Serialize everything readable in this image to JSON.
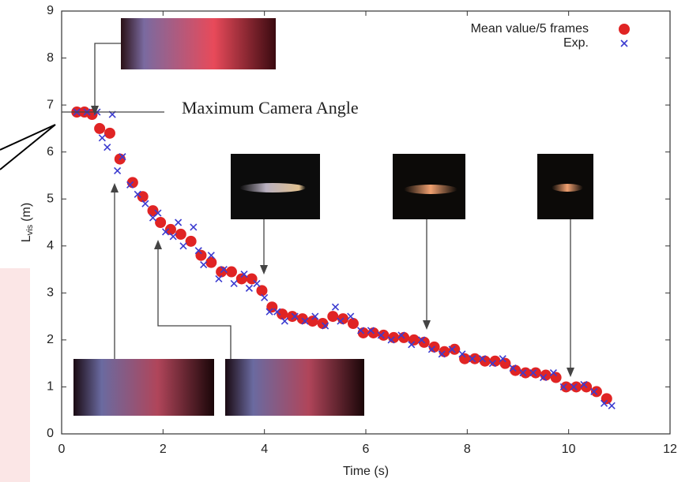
{
  "chart_data": {
    "type": "scatter",
    "x_label": "Time (s)",
    "y_label": "L",
    "y_label_subscript": "vis",
    "y_label_unit": "(m)",
    "annotation": "Maximum Camera Angle",
    "xlim": [
      0,
      12
    ],
    "ylim": [
      0,
      9
    ],
    "xticks": [
      0,
      2,
      4,
      6,
      8,
      10,
      12
    ],
    "yticks": [
      0,
      1,
      2,
      3,
      4,
      5,
      6,
      7,
      8,
      9
    ],
    "legend": "top-right",
    "series": [
      {
        "name": "Mean value/5 frames",
        "color": "#e02424",
        "marker": "circle",
        "x": [
          0.3,
          0.45,
          0.6,
          0.75,
          0.95,
          1.15,
          1.4,
          1.6,
          1.8,
          1.95,
          2.15,
          2.35,
          2.55,
          2.75,
          2.95,
          3.15,
          3.35,
          3.55,
          3.75,
          3.95,
          4.15,
          4.35,
          4.55,
          4.75,
          4.95,
          5.15,
          5.35,
          5.55,
          5.75,
          5.95,
          6.15,
          6.35,
          6.55,
          6.75,
          6.95,
          7.15,
          7.35,
          7.55,
          7.75,
          7.95,
          8.15,
          8.35,
          8.55,
          8.75,
          8.95,
          9.15,
          9.35,
          9.55,
          9.75,
          9.95,
          10.15,
          10.35,
          10.55,
          10.75
        ],
        "values": [
          6.85,
          6.85,
          6.8,
          6.5,
          6.4,
          5.85,
          5.35,
          5.05,
          4.75,
          4.5,
          4.35,
          4.25,
          4.1,
          3.8,
          3.65,
          3.45,
          3.45,
          3.3,
          3.3,
          3.05,
          2.7,
          2.55,
          2.5,
          2.45,
          2.4,
          2.35,
          2.5,
          2.45,
          2.35,
          2.15,
          2.15,
          2.1,
          2.05,
          2.05,
          2.0,
          1.95,
          1.85,
          1.75,
          1.8,
          1.6,
          1.6,
          1.55,
          1.55,
          1.5,
          1.35,
          1.3,
          1.3,
          1.25,
          1.2,
          1.0,
          1.0,
          1.0,
          0.9,
          0.75
        ]
      },
      {
        "name": "Exp.",
        "color": "#3b3bd0",
        "marker": "x",
        "x": [
          0.3,
          0.5,
          0.7,
          0.8,
          0.9,
          1.0,
          1.1,
          1.2,
          1.35,
          1.5,
          1.65,
          1.8,
          1.9,
          2.05,
          2.2,
          2.3,
          2.4,
          2.6,
          2.7,
          2.8,
          2.95,
          3.1,
          3.2,
          3.4,
          3.6,
          3.7,
          3.85,
          4.0,
          4.1,
          4.25,
          4.4,
          4.6,
          4.8,
          5.0,
          5.2,
          5.4,
          5.5,
          5.7,
          5.9,
          6.1,
          6.3,
          6.5,
          6.7,
          6.9,
          7.1,
          7.3,
          7.5,
          7.7,
          7.9,
          8.1,
          8.3,
          8.5,
          8.7,
          8.9,
          9.1,
          9.3,
          9.5,
          9.7,
          9.9,
          10.1,
          10.3,
          10.5,
          10.7,
          10.85
        ],
        "values": [
          6.85,
          6.85,
          6.85,
          6.3,
          6.1,
          6.8,
          5.6,
          5.9,
          5.3,
          5.1,
          4.9,
          4.6,
          4.7,
          4.3,
          4.2,
          4.5,
          4.0,
          4.4,
          3.9,
          3.6,
          3.8,
          3.3,
          3.5,
          3.2,
          3.4,
          3.1,
          3.2,
          2.9,
          2.6,
          2.6,
          2.4,
          2.5,
          2.4,
          2.5,
          2.3,
          2.7,
          2.4,
          2.5,
          2.2,
          2.2,
          2.1,
          2.0,
          2.1,
          1.9,
          2.0,
          1.8,
          1.7,
          1.8,
          1.7,
          1.6,
          1.6,
          1.5,
          1.6,
          1.4,
          1.3,
          1.3,
          1.2,
          1.3,
          1.0,
          1.0,
          1.05,
          0.9,
          0.65,
          0.6
        ]
      }
    ]
  }
}
